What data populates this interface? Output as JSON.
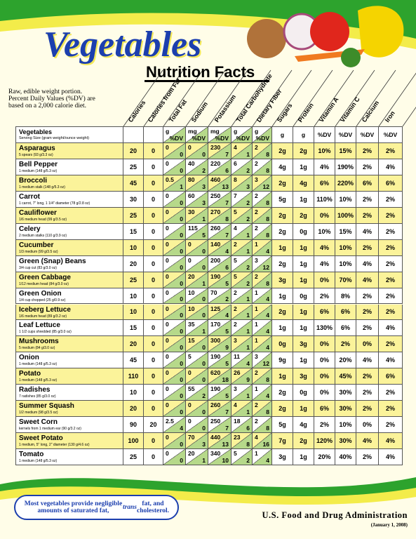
{
  "header": {
    "title": "Vegetables",
    "subtitle": "Nutrition Facts",
    "intro": [
      "Raw, edible weight portion.",
      "Percent Daily Values (%DV) are",
      "based on a 2,000 calorie diet."
    ]
  },
  "table": {
    "columns": [
      "Calories",
      "Calories from Fat",
      "Total Fat",
      "Sodium",
      "Potassium",
      "Total Carbohydrate",
      "Dietary Fiber",
      "Sugars",
      "Protein",
      "Vitamin A",
      "Vitamin C",
      "Calcium",
      "Iron"
    ],
    "first_header": [
      "Vegetables",
      "Serving Size (gram weight/ounce weight)"
    ],
    "units": [
      "g",
      "%DV",
      "mg",
      "%DV",
      "mg",
      "%DV",
      "g",
      "%DV",
      "g",
      "%DV",
      "g",
      "g",
      "%DV",
      "%DV",
      "%DV",
      "%DV"
    ],
    "rows": [
      [
        "Asparagus",
        "5 spears (93 g/3.3 oz)",
        "20",
        "0",
        "0",
        "0",
        "0",
        "0",
        "230",
        "7",
        "4",
        "1",
        "2",
        "8",
        "2g",
        "2g",
        "10%",
        "15%",
        "2%",
        "2%"
      ],
      [
        "Bell Pepper",
        "1 medium (148 g/5.3 oz)",
        "25",
        "0",
        "0",
        "0",
        "40",
        "2",
        "220",
        "6",
        "6",
        "2",
        "2",
        "8",
        "4g",
        "1g",
        "4%",
        "190%",
        "2%",
        "4%"
      ],
      [
        "Broccoli",
        "1 medium stalk (148 g/5.3 oz)",
        "45",
        "0",
        "0.5",
        "1",
        "80",
        "3",
        "460",
        "13",
        "8",
        "3",
        "3",
        "12",
        "2g",
        "4g",
        "6%",
        "220%",
        "6%",
        "6%"
      ],
      [
        "Carrot",
        "1 carrot, 7\" long, 1 1/4\" diameter (78 g/2.8 oz)",
        "30",
        "0",
        "0",
        "0",
        "60",
        "3",
        "250",
        "7",
        "7",
        "2",
        "2",
        "8",
        "5g",
        "1g",
        "110%",
        "10%",
        "2%",
        "2%"
      ],
      [
        "Cauliflower",
        "1/6 medium head (99 g/3.5 oz)",
        "25",
        "0",
        "0",
        "0",
        "30",
        "1",
        "270",
        "8",
        "5",
        "2",
        "2",
        "8",
        "2g",
        "2g",
        "0%",
        "100%",
        "2%",
        "2%"
      ],
      [
        "Celery",
        "2 medium stalks (110 g/3.9 oz)",
        "15",
        "0",
        "0",
        "0",
        "115",
        "5",
        "260",
        "7",
        "4",
        "1",
        "2",
        "8",
        "2g",
        "0g",
        "10%",
        "15%",
        "4%",
        "2%"
      ],
      [
        "Cucumber",
        "1/3 medium (99 g/3.5 oz)",
        "10",
        "0",
        "0",
        "0",
        "0",
        "0",
        "140",
        "4",
        "2",
        "1",
        "1",
        "4",
        "1g",
        "1g",
        "4%",
        "10%",
        "2%",
        "2%"
      ],
      [
        "Green (Snap) Beans",
        "3/4 cup cut (83 g/3.0 oz)",
        "20",
        "0",
        "0",
        "0",
        "0",
        "0",
        "200",
        "6",
        "5",
        "2",
        "3",
        "12",
        "2g",
        "1g",
        "4%",
        "10%",
        "4%",
        "2%"
      ],
      [
        "Green Cabbage",
        "1/12 medium head (84 g/3.0 oz)",
        "25",
        "0",
        "0",
        "0",
        "20",
        "1",
        "190",
        "5",
        "5",
        "2",
        "2",
        "8",
        "3g",
        "1g",
        "0%",
        "70%",
        "4%",
        "2%"
      ],
      [
        "Green Onion",
        "1/4 cup chopped (25 g/0.9 oz)",
        "10",
        "0",
        "0",
        "0",
        "10",
        "0",
        "70",
        "2",
        "2",
        "1",
        "1",
        "4",
        "1g",
        "0g",
        "2%",
        "8%",
        "2%",
        "2%"
      ],
      [
        "Iceberg Lettuce",
        "1/6 medium head (89 g/3.2 oz)",
        "10",
        "0",
        "0",
        "0",
        "10",
        "0",
        "125",
        "4",
        "2",
        "1",
        "1",
        "4",
        "2g",
        "1g",
        "6%",
        "6%",
        "2%",
        "2%"
      ],
      [
        "Leaf Lettuce",
        "1 1/2 cups shredded (85 g/3.0 oz)",
        "15",
        "0",
        "0",
        "0",
        "35",
        "1",
        "170",
        "5",
        "2",
        "1",
        "1",
        "4",
        "1g",
        "1g",
        "130%",
        "6%",
        "2%",
        "4%"
      ],
      [
        "Mushrooms",
        "5 medium (84 g/3.0 oz)",
        "20",
        "0",
        "0",
        "0",
        "15",
        "0",
        "300",
        "9",
        "3",
        "1",
        "1",
        "4",
        "0g",
        "3g",
        "0%",
        "2%",
        "0%",
        "2%"
      ],
      [
        "Onion",
        "1 medium (148 g/5.3 oz)",
        "45",
        "0",
        "0",
        "0",
        "5",
        "0",
        "190",
        "5",
        "11",
        "4",
        "3",
        "12",
        "9g",
        "1g",
        "0%",
        "20%",
        "4%",
        "4%"
      ],
      [
        "Potato",
        "1 medium (148 g/5.3 oz)",
        "110",
        "0",
        "0",
        "0",
        "0",
        "0",
        "620",
        "18",
        "26",
        "9",
        "2",
        "8",
        "1g",
        "3g",
        "0%",
        "45%",
        "2%",
        "6%"
      ],
      [
        "Radishes",
        "7 radishes (85 g/3.0 oz)",
        "10",
        "0",
        "0",
        "0",
        "55",
        "2",
        "190",
        "5",
        "3",
        "1",
        "1",
        "4",
        "2g",
        "0g",
        "0%",
        "30%",
        "2%",
        "2%"
      ],
      [
        "Summer Squash",
        "1/2 medium (98 g/3.5 oz)",
        "20",
        "0",
        "0",
        "0",
        "0",
        "0",
        "260",
        "7",
        "4",
        "1",
        "2",
        "8",
        "2g",
        "1g",
        "6%",
        "30%",
        "2%",
        "2%"
      ],
      [
        "Sweet Corn",
        "kernels from 1 medium ear (90 g/3.2 oz)",
        "90",
        "20",
        "2.5",
        "4",
        "0",
        "0",
        "250",
        "7",
        "18",
        "6",
        "2",
        "8",
        "5g",
        "4g",
        "2%",
        "10%",
        "0%",
        "2%"
      ],
      [
        "Sweet Potato",
        "1 medium, 5\" long, 2\" diameter (130 g/4.6 oz)",
        "100",
        "0",
        "0",
        "0",
        "70",
        "3",
        "440",
        "13",
        "23",
        "8",
        "4",
        "16",
        "7g",
        "2g",
        "120%",
        "30%",
        "4%",
        "4%"
      ],
      [
        "Tomato",
        "1 medium (148 g/5.3 oz)",
        "25",
        "0",
        "0",
        "0",
        "20",
        "1",
        "340",
        "10",
        "5",
        "2",
        "1",
        "4",
        "3g",
        "1g",
        "20%",
        "40%",
        "2%",
        "4%"
      ]
    ]
  },
  "footer": {
    "note": [
      "Most vegetables provide negligible amounts of saturated fat, ",
      "trans",
      " fat, and cholesterol."
    ],
    "agency": "U.S. Food and Drug Administration",
    "date": "(January 1, 2008)"
  }
}
